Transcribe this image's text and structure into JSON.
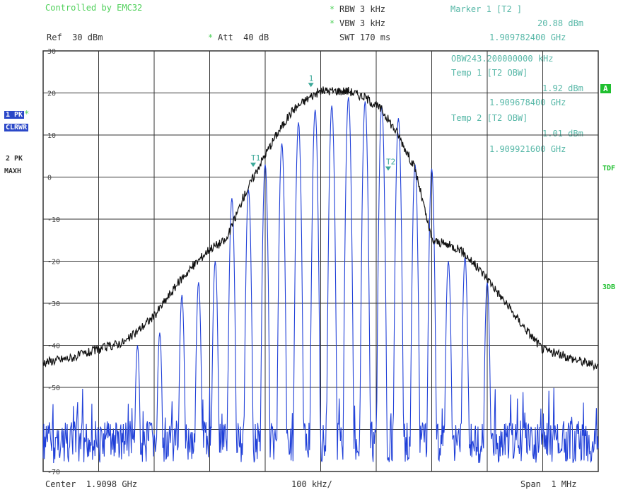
{
  "header": {
    "controlled_by": "Controlled by EMC32",
    "rbw": "RBW 3 kHz",
    "vbw": "VBW 3 kHz",
    "swt": "SWT 170 ms",
    "ref": "Ref  30 dBm",
    "att": "Att  40 dB",
    "star": "*"
  },
  "markers": {
    "marker1_title": "Marker 1 [T2 ]",
    "marker1_level": "20.88 dBm",
    "marker1_freq": "1.909782400 GHz",
    "obw": "OBW243.200000000 kHz",
    "temp1_title": "Temp 1 [T2 OBW]",
    "temp1_level": "1.92 dBm",
    "temp1_freq": "1.909678400 GHz",
    "temp2_title": "Temp 2 [T2 OBW]",
    "temp2_level": "1.01 dBm",
    "temp2_freq": "1.909921600 GHz",
    "label_1": "1",
    "label_t1": "T1",
    "label_t2": "T2"
  },
  "side": {
    "trace1_a": "1 PK",
    "trace1_b": "CLRWR",
    "trace2_a": "2 PK",
    "trace2_b": "MAXH",
    "a_badge": "A",
    "tdf": "TDF",
    "three_db": "3DB"
  },
  "footer": {
    "center": "Center  1.9098 GHz",
    "div": "100 kHz/",
    "span": "Span  1 MHz"
  },
  "colors": {
    "grid": "#333333",
    "trace_maxhold": "#111111",
    "trace_clearwrite": "#2040d8",
    "marker": "#3aa898",
    "text_green": "#4fd05a"
  },
  "chart_data": {
    "type": "line",
    "title": "",
    "xlabel": "",
    "ylabel": "",
    "x_unit": "GHz",
    "y_unit": "dBm",
    "xlim": [
      1.9093,
      1.9103
    ],
    "ylim": [
      -70,
      30
    ],
    "yticks": [
      30,
      20,
      10,
      0,
      -10,
      -20,
      -30,
      -40,
      -50,
      -70
    ],
    "grid": true,
    "series": [
      {
        "name": "2 PK MAXH",
        "color": "#111111",
        "x": [
          1.9093,
          1.90935,
          1.9094,
          1.90945,
          1.9095,
          1.90955,
          1.9096,
          1.90963,
          1.90966,
          1.90969,
          1.90972,
          1.90975,
          1.90978,
          1.9098,
          1.90982,
          1.90985,
          1.90988,
          1.90991,
          1.90994,
          1.90997,
          1.91,
          1.91005,
          1.9101,
          1.91015,
          1.9102,
          1.91025,
          1.9103
        ],
        "values": [
          -44,
          -43,
          -41,
          -39,
          -33,
          -24,
          -17,
          -15,
          -5,
          3,
          10,
          16,
          19,
          20.5,
          20.5,
          20.5,
          19,
          16,
          10,
          2,
          -15,
          -17,
          -24,
          -33,
          -41,
          -43,
          -45
        ]
      },
      {
        "name": "1 PK CLRWR",
        "color": "#2040d8",
        "x": [
          1.90947,
          1.90951,
          1.90955,
          1.90958,
          1.90961,
          1.90964,
          1.90967,
          1.9097,
          1.90973,
          1.90976,
          1.90979,
          1.90982,
          1.90985,
          1.90988,
          1.90991,
          1.90994,
          1.90997,
          1.91,
          1.91003,
          1.91006,
          1.9101
        ],
        "values": [
          -40,
          -37,
          -28,
          -25,
          -20,
          -5,
          -3,
          3,
          8,
          13,
          16,
          17,
          19,
          18,
          17,
          14,
          3,
          2,
          -20,
          -19,
          -25
        ]
      }
    ]
  }
}
